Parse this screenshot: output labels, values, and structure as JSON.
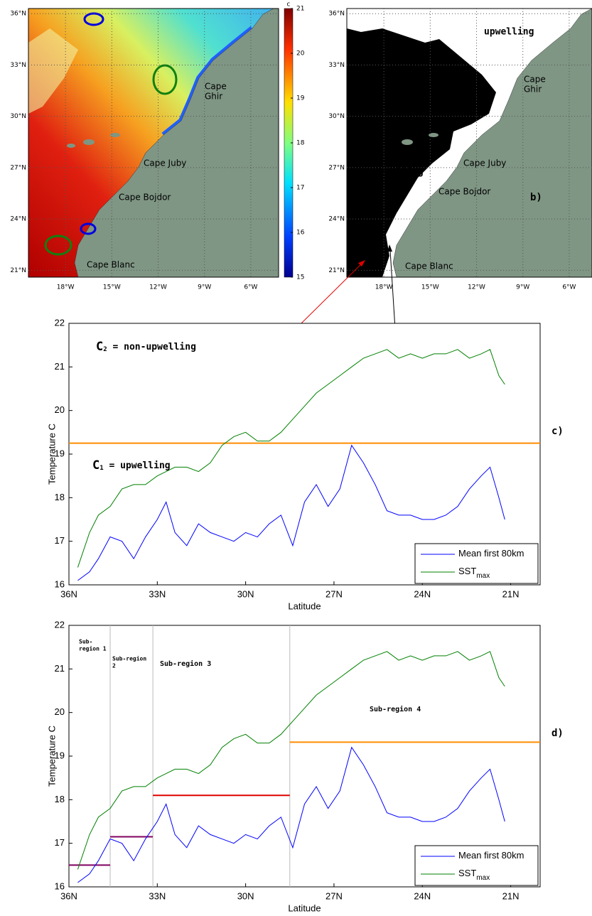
{
  "chart_data": [
    {
      "type": "map",
      "xlim": [
        -20.4,
        -4.2
      ],
      "ylim": [
        20.6,
        36.3
      ],
      "xticks": [
        {
          "value": -18,
          "label": "18°W"
        },
        {
          "value": -15,
          "label": "15°W"
        },
        {
          "value": -12,
          "label": "12°W"
        },
        {
          "value": -9,
          "label": "9°W"
        },
        {
          "value": -6,
          "label": "6°W"
        }
      ],
      "yticks": [
        {
          "value": 36,
          "label": "36°N"
        },
        {
          "value": 33,
          "label": "33°N"
        },
        {
          "value": 30,
          "label": "30°N"
        },
        {
          "value": 27,
          "label": "27°N"
        },
        {
          "value": 24,
          "label": "24°N"
        },
        {
          "value": 21,
          "label": "21°N"
        }
      ],
      "places": [
        [
          "Cape",
          "Ghir"
        ],
        [
          "Cape Juby"
        ],
        [
          "Cape Bojdor"
        ],
        [
          "Cape Blanc"
        ]
      ],
      "colorbar": {
        "label": "c",
        "lim": [
          15,
          21
        ],
        "ticks": [
          15,
          16,
          17,
          18,
          19,
          20,
          21
        ]
      }
    },
    {
      "type": "map",
      "xlim": [
        -20.4,
        -4.2
      ],
      "ylim": [
        20.6,
        36.3
      ],
      "xticks": [
        {
          "value": -18,
          "label": "18°W"
        },
        {
          "value": -15,
          "label": "15°W"
        },
        {
          "value": -12,
          "label": "12°W"
        },
        {
          "value": -9,
          "label": "9°W"
        },
        {
          "value": -6,
          "label": "6°W"
        }
      ],
      "yticks": [
        {
          "value": 36,
          "label": "36°N"
        },
        {
          "value": 33,
          "label": "33°N"
        },
        {
          "value": 30,
          "label": "30°N"
        },
        {
          "value": 27,
          "label": "27°N"
        },
        {
          "value": 24,
          "label": "24°N"
        },
        {
          "value": 21,
          "label": "21°N"
        }
      ],
      "places": [
        [
          "Cape",
          "Ghir"
        ],
        [
          "Cape Juby"
        ],
        [
          "Cape Bojdor"
        ],
        [
          "Cape Blanc"
        ]
      ],
      "labels": [
        "upwelling",
        "non-upwelling"
      ],
      "panel": "b)"
    },
    {
      "type": "line",
      "xlabel": "Latitude",
      "ylabel": "Temperature C",
      "panel": "c)",
      "xlim": [
        36,
        20
      ],
      "ylim": [
        16,
        22
      ],
      "xticks": [
        {
          "value": 36,
          "label": "36N"
        },
        {
          "value": 33,
          "label": "33N"
        },
        {
          "value": 30,
          "label": "30N"
        },
        {
          "value": 27,
          "label": "27N"
        },
        {
          "value": 24,
          "label": "24N"
        },
        {
          "value": 21,
          "label": "21N"
        }
      ],
      "yticks": [
        16,
        17,
        18,
        19,
        20,
        21,
        22
      ],
      "x": [
        35.7,
        35.3,
        35.0,
        34.6,
        34.2,
        33.8,
        33.4,
        33.0,
        32.7,
        32.4,
        32.0,
        31.6,
        31.2,
        30.8,
        30.4,
        30.0,
        29.6,
        29.2,
        28.8,
        28.4,
        28.0,
        27.6,
        27.2,
        26.8,
        26.4,
        26.0,
        25.6,
        25.2,
        24.8,
        24.4,
        24.0,
        23.6,
        23.2,
        22.8,
        22.4,
        22.0,
        21.7,
        21.4,
        21.2
      ],
      "series": [
        {
          "name": "Mean first 80km",
          "color": "#0000ff",
          "values": [
            16.1,
            16.3,
            16.6,
            17.1,
            17.0,
            16.6,
            17.1,
            17.5,
            17.9,
            17.2,
            16.9,
            17.4,
            17.2,
            17.1,
            17.0,
            17.2,
            17.1,
            17.4,
            17.6,
            16.9,
            17.9,
            18.3,
            17.8,
            18.2,
            19.2,
            18.8,
            18.3,
            17.7,
            17.6,
            17.6,
            17.5,
            17.5,
            17.6,
            17.8,
            18.2,
            18.5,
            18.7,
            18.0,
            17.5
          ]
        },
        {
          "name": "SST",
          "sub": "max",
          "color": "#008000",
          "values": [
            16.4,
            17.2,
            17.6,
            17.8,
            18.2,
            18.3,
            18.3,
            18.5,
            18.6,
            18.7,
            18.7,
            18.6,
            18.8,
            19.2,
            19.4,
            19.5,
            19.3,
            19.3,
            19.5,
            19.8,
            20.1,
            20.4,
            20.6,
            20.8,
            21.0,
            21.2,
            21.3,
            21.4,
            21.2,
            21.3,
            21.2,
            21.3,
            21.3,
            21.4,
            21.2,
            21.3,
            21.4,
            20.8,
            20.6
          ]
        }
      ],
      "reference_lines": [
        {
          "value": 19.25,
          "color": "#ff8c00"
        }
      ],
      "annotations": [
        {
          "text": "C",
          "sub": "2",
          "rest": " = non-upwelling"
        },
        {
          "text": "C",
          "sub": "1",
          "rest": " = upwelling"
        }
      ]
    },
    {
      "type": "line",
      "xlabel": "Latitude",
      "ylabel": "Temperature C",
      "panel": "d)",
      "xlim": [
        36,
        20
      ],
      "ylim": [
        16,
        22
      ],
      "xticks": [
        {
          "value": 36,
          "label": "36N"
        },
        {
          "value": 33,
          "label": "33N"
        },
        {
          "value": 30,
          "label": "30N"
        },
        {
          "value": 27,
          "label": "27N"
        },
        {
          "value": 24,
          "label": "24N"
        },
        {
          "value": 21,
          "label": "21N"
        }
      ],
      "yticks": [
        16,
        17,
        18,
        19,
        20,
        21,
        22
      ],
      "x": [
        35.7,
        35.3,
        35.0,
        34.6,
        34.2,
        33.8,
        33.4,
        33.0,
        32.7,
        32.4,
        32.0,
        31.6,
        31.2,
        30.8,
        30.4,
        30.0,
        29.6,
        29.2,
        28.8,
        28.4,
        28.0,
        27.6,
        27.2,
        26.8,
        26.4,
        26.0,
        25.6,
        25.2,
        24.8,
        24.4,
        24.0,
        23.6,
        23.2,
        22.8,
        22.4,
        22.0,
        21.7,
        21.4,
        21.2
      ],
      "series": [
        {
          "name": "Mean first 80km",
          "color": "#0000ff",
          "values": [
            16.1,
            16.3,
            16.6,
            17.1,
            17.0,
            16.6,
            17.1,
            17.5,
            17.9,
            17.2,
            16.9,
            17.4,
            17.2,
            17.1,
            17.0,
            17.2,
            17.1,
            17.4,
            17.6,
            16.9,
            17.9,
            18.3,
            17.8,
            18.2,
            19.2,
            18.8,
            18.3,
            17.7,
            17.6,
            17.6,
            17.5,
            17.5,
            17.6,
            17.8,
            18.2,
            18.5,
            18.7,
            18.0,
            17.5
          ]
        },
        {
          "name": "SST",
          "sub": "max",
          "color": "#008000",
          "values": [
            16.4,
            17.2,
            17.6,
            17.8,
            18.2,
            18.3,
            18.3,
            18.5,
            18.6,
            18.7,
            18.7,
            18.6,
            18.8,
            19.2,
            19.4,
            19.5,
            19.3,
            19.3,
            19.5,
            19.8,
            20.1,
            20.4,
            20.6,
            20.8,
            21.0,
            21.2,
            21.3,
            21.4,
            21.2,
            21.3,
            21.2,
            21.3,
            21.3,
            21.4,
            21.2,
            21.3,
            21.4,
            20.8,
            20.6
          ]
        }
      ],
      "dividers": [
        34.6,
        33.15,
        28.5
      ],
      "levels": [
        {
          "from": 36,
          "to": 34.6,
          "value": 16.5,
          "color": "#800060"
        },
        {
          "from": 34.6,
          "to": 33.15,
          "value": 17.15,
          "color": "#800060"
        },
        {
          "from": 33.15,
          "to": 28.5,
          "value": 18.1,
          "color": "#e00000"
        },
        {
          "from": 28.5,
          "to": 20,
          "value": 19.32,
          "color": "#ff8c00"
        }
      ],
      "regions": [
        [
          "Sub-",
          "region 1"
        ],
        [
          "Sub-region",
          "2"
        ],
        [
          "Sub-region 3"
        ],
        [
          "Sub-region 4"
        ]
      ]
    }
  ]
}
